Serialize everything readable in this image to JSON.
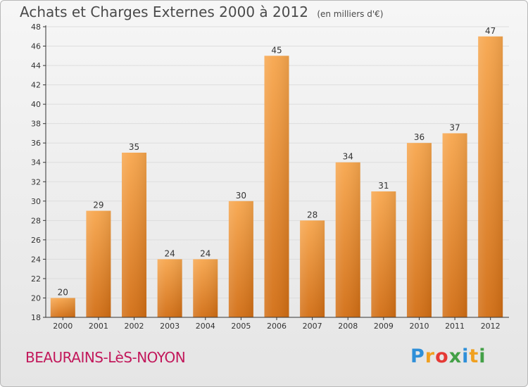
{
  "header": {
    "title": "Achats et Charges Externes 2000 à 2012",
    "unit": "(en milliers d'€)"
  },
  "footer": {
    "place": "BEAURAINS-LèS-NOYON",
    "logo": "Proxiti"
  },
  "colors": {
    "bar_top": "#f7a64d",
    "bar_bottom": "#d26e14",
    "axis": "#333333",
    "grid": "#dddddd"
  },
  "chart_data": {
    "type": "bar",
    "title": "Achats et Charges Externes 2000 à 2012",
    "subtitle": "(en milliers d'€)",
    "xlabel": "",
    "ylabel": "",
    "categories": [
      "2000",
      "2001",
      "2002",
      "2003",
      "2004",
      "2005",
      "2006",
      "2007",
      "2008",
      "2009",
      "2010",
      "2011",
      "2012"
    ],
    "values": [
      20,
      29,
      35,
      24,
      24,
      30,
      45,
      28,
      34,
      31,
      36,
      37,
      47
    ],
    "ylim": [
      18,
      48
    ],
    "yticks": [
      18,
      20,
      22,
      24,
      26,
      28,
      30,
      32,
      34,
      36,
      38,
      40,
      42,
      44,
      46,
      48
    ],
    "grid": true,
    "legend": "none"
  }
}
